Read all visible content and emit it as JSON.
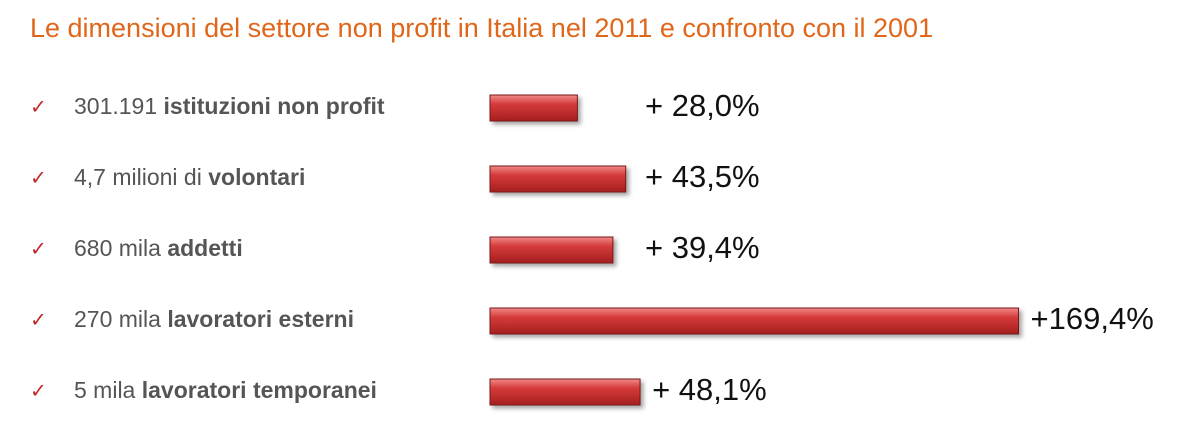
{
  "chart_data": {
    "type": "bar",
    "orientation": "horizontal",
    "title": "Le dimensioni del settore non profit in Italia nel 2011 e confronto con il 2001",
    "categories": [
      [
        "301.191",
        "istituzioni non profit"
      ],
      [
        "4,7 milioni di",
        "volontari"
      ],
      [
        "680 mila",
        "addetti"
      ],
      [
        "270 mila",
        "lavoratori esterni"
      ],
      [
        "5 mila",
        "lavoratori temporanei"
      ]
    ],
    "values": [
      28.0,
      43.5,
      39.4,
      169.4,
      48.1
    ],
    "value_labels": [
      "+ 28,0%",
      "+ 43,5%",
      "+ 39,4%",
      "+169,4%",
      "+ 48,1%"
    ],
    "color": "#d63b3b"
  }
}
